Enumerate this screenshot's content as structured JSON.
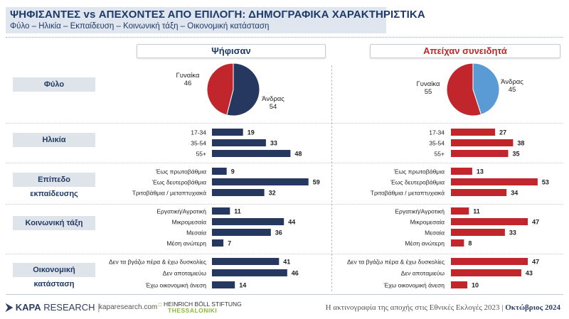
{
  "header": {
    "title": "ΨΗΦΙΣΑΝΤΕΣ vs ΑΠΕΧΟΝΤΕΣ ΑΠΟ ΕΠΙΛΟΓΗ: ΔΗΜΟΓΡΑΦΙΚΑ ΧΑΡΑΚΤΗΡΙΣΤΙΚΑ",
    "subtitle": "Φύλο – Ηλικία – Εκπαίδευση – Κοινωνική τάξη – Οικονομική κατάσταση"
  },
  "columns": {
    "voted": "Ψήφισαν",
    "abstained": "Απείχαν συνειδητά"
  },
  "categories": [
    "Φύλο",
    "Ηλικία",
    "Επίπεδο εκπαίδευσης",
    "Κοινωνική τάξη",
    "Οικονομική κατάσταση"
  ],
  "colors": {
    "navy": "#26385f",
    "red": "#c0262b",
    "blue": "#5b9bd5"
  },
  "footer": {
    "brand_bold": "KAPA",
    "brand_rest": "RESEARCH",
    "site": "kaparesearch.com",
    "partner_line1": "HEINRICH BÖLL STIFTUNG",
    "partner_line2": "THESSALONIKI",
    "source": "Η ακτινογραφία της αποχής στις Εθνικές Εκλογές 2023 |",
    "date": "Οκτώβριος 2024"
  },
  "chart_data": [
    {
      "type": "pie",
      "panel": "Ψήφισαν",
      "slices": [
        {
          "label": "Γυναίκα",
          "value": 46,
          "color": "#c0262b"
        },
        {
          "label": "Άνδρας",
          "value": 54,
          "color": "#26385f"
        }
      ]
    },
    {
      "type": "pie",
      "panel": "Απείχαν συνειδητά",
      "slices": [
        {
          "label": "Γυναίκα",
          "value": 55,
          "color": "#c0262b"
        },
        {
          "label": "Άνδρας",
          "value": 45,
          "color": "#5b9bd5"
        }
      ]
    },
    {
      "type": "bar",
      "orientation": "horizontal",
      "panel": "Ψήφισαν",
      "groups": [
        {
          "category": "Ηλικία",
          "labels": [
            "17-34",
            "35-54",
            "55+"
          ],
          "values": [
            19,
            33,
            48
          ]
        },
        {
          "category": "Επίπεδο εκπαίδευσης",
          "labels": [
            "Έως πρωτοβάθμια",
            "Έως δευτεροβάθμια",
            "Τριτοβάθμια / μεταπτυχιακά"
          ],
          "values": [
            9,
            59,
            32
          ]
        },
        {
          "category": "Κοινωνική τάξη",
          "labels": [
            "Εργατική/Αγροτική",
            "Μικρομεσαία",
            "Μεσαία",
            "Μέση ανώτερη"
          ],
          "values": [
            11,
            44,
            36,
            7
          ]
        },
        {
          "category": "Οικονομική κατάσταση",
          "labels": [
            "Δεν τα βγάζω πέρα & έχω δυσκολίες",
            "Δεν αποταμιεύω",
            "Έχω οικονομική άνεση"
          ],
          "values": [
            41,
            46,
            14
          ]
        }
      ]
    },
    {
      "type": "bar",
      "orientation": "horizontal",
      "panel": "Απείχαν συνειδητά",
      "groups": [
        {
          "category": "Ηλικία",
          "labels": [
            "17-34",
            "35-54",
            "55+"
          ],
          "values": [
            27,
            38,
            35
          ]
        },
        {
          "category": "Επίπεδο εκπαίδευσης",
          "labels": [
            "Έως πρωτοβάθμια",
            "Έως δευτεροβάθμια",
            "Τριτοβάθμια / μεταπτυχιακά"
          ],
          "values": [
            13,
            53,
            34
          ]
        },
        {
          "category": "Κοινωνική τάξη",
          "labels": [
            "Εργατική/Αγροτική",
            "Μικρομεσαία",
            "Μεσαία",
            "Μέση ανώτερη"
          ],
          "values": [
            11,
            47,
            33,
            8
          ]
        },
        {
          "category": "Οικονομική κατάσταση",
          "labels": [
            "Δεν τα βγάζω πέρα & έχω δυσκολίες",
            "Δεν αποταμιεύω",
            "Έχω οικονομική άνεση"
          ],
          "values": [
            47,
            43,
            10
          ]
        }
      ]
    }
  ]
}
